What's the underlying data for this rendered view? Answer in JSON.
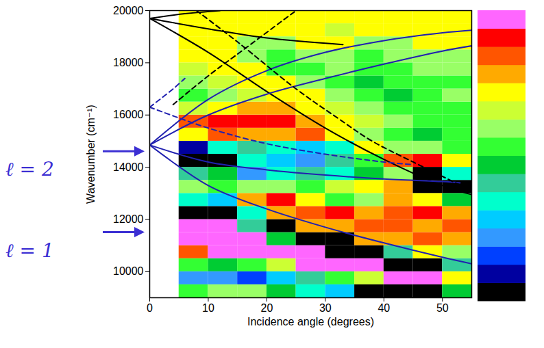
{
  "chart_data": {
    "type": "heatmap",
    "x_label": "Incidence angle (degrees)",
    "y_label": "Wavenumber (cm⁻¹)",
    "xlim": [
      0,
      55
    ],
    "ylim": [
      9000,
      20000
    ],
    "xticks": [
      0,
      10,
      20,
      30,
      40,
      50
    ],
    "yticks": [
      10000,
      12000,
      14000,
      16000,
      18000,
      20000
    ],
    "x_edges": [
      5,
      10,
      15,
      20,
      25,
      30,
      35,
      40,
      45,
      50,
      55
    ],
    "y_edges": [
      9000,
      9500,
      10000,
      10500,
      11000,
      11500,
      12000,
      12500,
      13000,
      13500,
      14000,
      14500,
      15000,
      15500,
      16000,
      16500,
      17000,
      17500,
      18000,
      18500,
      19000,
      19500,
      20000
    ],
    "cells": [
      [
        8,
        9,
        9,
        7,
        5,
        4,
        0,
        0,
        0,
        7
      ],
      [
        3,
        3,
        2,
        4,
        6,
        8,
        10,
        15,
        15,
        11
      ],
      [
        8,
        7,
        8,
        10,
        15,
        15,
        15,
        0,
        0,
        6
      ],
      [
        13,
        15,
        15,
        15,
        15,
        0,
        0,
        6,
        11,
        9
      ],
      [
        15,
        15,
        15,
        7,
        0,
        0,
        12,
        12,
        13,
        12
      ],
      [
        15,
        15,
        6,
        0,
        12,
        12,
        13,
        13,
        12,
        13
      ],
      [
        0,
        0,
        5,
        12,
        13,
        14,
        12,
        13,
        14,
        12
      ],
      [
        5,
        4,
        12,
        14,
        11,
        8,
        9,
        12,
        11,
        7
      ],
      [
        9,
        8,
        9,
        9,
        8,
        10,
        11,
        12,
        0,
        0
      ],
      [
        6,
        7,
        3,
        5,
        6,
        5,
        7,
        9,
        0,
        5
      ],
      [
        0,
        0,
        5,
        4,
        3,
        6,
        8,
        13,
        14,
        11
      ],
      [
        1,
        5,
        6,
        5,
        4,
        5,
        11,
        9,
        9,
        8
      ],
      [
        11,
        13,
        12,
        12,
        13,
        11,
        9,
        8,
        7,
        8
      ],
      [
        13,
        14,
        14,
        14,
        12,
        11,
        10,
        9,
        8,
        8
      ],
      [
        10,
        11,
        12,
        12,
        11,
        10,
        9,
        8,
        8,
        8
      ],
      [
        8,
        9,
        10,
        11,
        11,
        9,
        8,
        7,
        8,
        9
      ],
      [
        9,
        10,
        11,
        11,
        9,
        8,
        7,
        8,
        8,
        8
      ],
      [
        10,
        11,
        11,
        8,
        8,
        9,
        8,
        8,
        9,
        9
      ],
      [
        11,
        11,
        9,
        8,
        9,
        9,
        8,
        9,
        9,
        9
      ],
      [
        11,
        11,
        9,
        9,
        11,
        11,
        9,
        9,
        11,
        11
      ],
      [
        11,
        11,
        11,
        11,
        11,
        10,
        11,
        11,
        11,
        11
      ],
      [
        11,
        11,
        11,
        11,
        11,
        11,
        11,
        11,
        11,
        11
      ]
    ],
    "colorbar": {
      "range": [
        0,
        15
      ],
      "colors": [
        "#000000",
        "#0000a0",
        "#0040ff",
        "#3399ff",
        "#00ccff",
        "#00ffcc",
        "#33cc99",
        "#00cc33",
        "#33ff33",
        "#99ff66",
        "#ccff33",
        "#ffff00",
        "#ffaa00",
        "#ff5500",
        "#ff0000",
        "#ff66ff"
      ]
    },
    "series": [
      {
        "color": "#000000",
        "line_style": "solid",
        "x": [
          0,
          10,
          20,
          33
        ],
        "y": [
          19700,
          19300,
          18950,
          18700
        ]
      },
      {
        "color": "#000000",
        "line_style": "solid",
        "x": [
          0,
          10,
          20,
          30,
          40,
          50,
          55
        ],
        "y": [
          19700,
          18400,
          16900,
          15500,
          14300,
          13300,
          12950
        ]
      },
      {
        "color": "#000000",
        "line_style": "solid",
        "x": [
          0,
          6,
          12
        ],
        "y": [
          19700,
          19880,
          20000
        ]
      },
      {
        "color": "#2020b0",
        "line_style": "solid",
        "x": [
          0,
          10,
          20,
          30,
          40,
          50,
          55
        ],
        "y": [
          14850,
          16600,
          17700,
          18400,
          18850,
          19150,
          19250
        ]
      },
      {
        "color": "#2020b0",
        "line_style": "solid",
        "x": [
          0,
          10,
          20,
          30,
          40,
          50,
          55
        ],
        "y": [
          14850,
          16000,
          16800,
          17400,
          17950,
          18450,
          18650
        ]
      },
      {
        "color": "#2020b0",
        "line_style": "solid",
        "x": [
          0,
          10,
          20,
          30,
          40,
          50,
          53
        ],
        "y": [
          14850,
          14200,
          13900,
          13700,
          13550,
          13450,
          13400
        ]
      },
      {
        "color": "#2020b0",
        "line_style": "solid",
        "x": [
          0,
          10,
          20,
          30,
          40,
          50,
          55
        ],
        "y": [
          14850,
          13300,
          12400,
          11700,
          11100,
          10550,
          10300
        ]
      },
      {
        "color": "#000000",
        "line_style": "dashed",
        "x": [
          8,
          15,
          25,
          32,
          38,
          45,
          55
        ],
        "y": [
          20000,
          18800,
          17000,
          15900,
          15000,
          14200,
          13100
        ]
      },
      {
        "color": "#000000",
        "line_style": "dashed",
        "x": [
          4,
          10,
          16,
          25
        ],
        "y": [
          16400,
          17500,
          18500,
          20000
        ]
      },
      {
        "color": "#2020b0",
        "line_style": "dashed",
        "x": [
          0,
          10,
          20,
          30,
          40,
          45
        ],
        "y": [
          16300,
          15500,
          14900,
          14500,
          14200,
          14100
        ]
      },
      {
        "color": "#2020b0",
        "line_style": "dashed",
        "x": [
          0,
          4,
          6
        ],
        "y": [
          16300,
          17000,
          17400
        ]
      }
    ],
    "annotations": [
      {
        "text": "ℓ = 2",
        "y": 14600
      },
      {
        "text": "ℓ = 1",
        "y": 11500
      }
    ]
  }
}
